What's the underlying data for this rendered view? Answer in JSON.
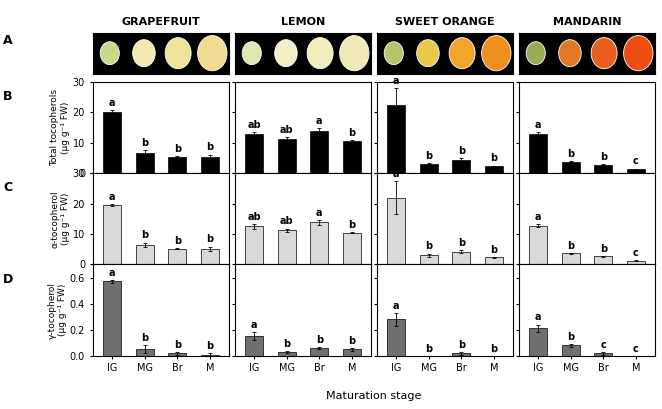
{
  "panel_A": "A",
  "xlabel": "Maturation stage",
  "chart_data": [
    {
      "type": "bar",
      "panel": "B",
      "title": "GRAPEFRUIT",
      "ylabel": "Total tocopherols\n(µg g⁻¹ FW)",
      "categories": [
        "IG",
        "MG",
        "Br",
        "M"
      ],
      "values": [
        20.2,
        6.7,
        5.3,
        5.3
      ],
      "errors": [
        0.5,
        0.8,
        0.3,
        0.8
      ],
      "letters": [
        "a",
        "b",
        "b",
        "b"
      ],
      "color": "#000000",
      "ylim": [
        0,
        30
      ],
      "yticks": [
        0,
        10,
        20,
        30
      ],
      "tick_labels": "y"
    },
    {
      "type": "bar",
      "title": "LEMON",
      "categories": [
        "IG",
        "MG",
        "Br",
        "M"
      ],
      "values": [
        12.7,
        11.3,
        14.0,
        10.6
      ],
      "errors": [
        0.8,
        0.6,
        0.8,
        0.3
      ],
      "letters": [
        "ab",
        "ab",
        "a",
        "b"
      ],
      "color": "#000000",
      "ylim": [
        0,
        30
      ],
      "yticks": [
        0,
        10,
        20,
        30
      ],
      "tick_labels": false
    },
    {
      "type": "bar",
      "title": "SWEET ORANGE",
      "categories": [
        "IG",
        "MG",
        "Br",
        "M"
      ],
      "values": [
        22.3,
        3.1,
        4.3,
        2.3
      ],
      "errors": [
        5.5,
        0.3,
        0.6,
        0.2
      ],
      "letters": [
        "a",
        "b",
        "b",
        "b"
      ],
      "color": "#000000",
      "ylim": [
        0,
        30
      ],
      "yticks": [
        0,
        10,
        20,
        30
      ],
      "tick_labels": false
    },
    {
      "type": "bar",
      "title": "MANDARIN",
      "categories": [
        "IG",
        "MG",
        "Br",
        "M"
      ],
      "values": [
        13.0,
        3.8,
        2.8,
        1.3
      ],
      "errors": [
        0.5,
        0.2,
        0.2,
        0.2
      ],
      "letters": [
        "a",
        "b",
        "b",
        "c"
      ],
      "color": "#000000",
      "ylim": [
        0,
        30
      ],
      "yticks": [
        0,
        10,
        20,
        30
      ],
      "tick_labels": false
    },
    {
      "type": "bar",
      "panel": "C",
      "ylabel": "α-tocopherol\n(µg g⁻¹ FW)",
      "categories": [
        "IG",
        "MG",
        "Br",
        "M"
      ],
      "values": [
        19.6,
        6.5,
        5.2,
        5.2
      ],
      "errors": [
        0.4,
        0.7,
        0.2,
        0.7
      ],
      "letters": [
        "a",
        "b",
        "b",
        "b"
      ],
      "color": "#d9d9d9",
      "ylim": [
        0,
        30
      ],
      "yticks": [
        0,
        10,
        20,
        30
      ],
      "tick_labels": "y"
    },
    {
      "type": "bar",
      "categories": [
        "IG",
        "MG",
        "Br",
        "M"
      ],
      "values": [
        12.5,
        11.2,
        13.9,
        10.5
      ],
      "errors": [
        0.8,
        0.6,
        0.8,
        0.3
      ],
      "letters": [
        "ab",
        "ab",
        "a",
        "b"
      ],
      "color": "#d9d9d9",
      "ylim": [
        0,
        30
      ],
      "yticks": [
        0,
        10,
        20,
        30
      ],
      "tick_labels": false
    },
    {
      "type": "bar",
      "categories": [
        "IG",
        "MG",
        "Br",
        "M"
      ],
      "values": [
        22.0,
        3.1,
        4.2,
        2.3
      ],
      "errors": [
        5.5,
        0.5,
        0.4,
        0.2
      ],
      "letters": [
        "a",
        "b",
        "b",
        "b"
      ],
      "color": "#d9d9d9",
      "ylim": [
        0,
        30
      ],
      "yticks": [
        0,
        10,
        20,
        30
      ],
      "tick_labels": false
    },
    {
      "type": "bar",
      "categories": [
        "IG",
        "MG",
        "Br",
        "M"
      ],
      "values": [
        12.8,
        3.7,
        2.7,
        1.3
      ],
      "errors": [
        0.4,
        0.2,
        0.2,
        0.2
      ],
      "letters": [
        "a",
        "b",
        "b",
        "c"
      ],
      "color": "#d9d9d9",
      "ylim": [
        0,
        30
      ],
      "yticks": [
        0,
        10,
        20,
        30
      ],
      "tick_labels": false
    },
    {
      "type": "bar",
      "panel": "D",
      "ylabel": "γ-tocopherol\n(µg g⁻¹ FW)",
      "categories": [
        "IG",
        "MG",
        "Br",
        "M"
      ],
      "values": [
        0.57,
        0.05,
        0.02,
        0.01
      ],
      "errors": [
        0.01,
        0.03,
        0.01,
        0.01
      ],
      "letters": [
        "a",
        "b",
        "b",
        "b"
      ],
      "color": "#707070",
      "ylim": [
        0,
        0.7
      ],
      "yticks": [
        {
          "value": 0,
          "label": "0.0"
        },
        {
          "value": 0.2,
          "label": "0.2"
        },
        {
          "value": 0.4,
          "label": "0.4"
        },
        {
          "value": 0.6,
          "label": "0.6"
        }
      ]
    },
    {
      "type": "bar",
      "categories": [
        "IG",
        "MG",
        "Br",
        "M"
      ],
      "values": [
        0.15,
        0.03,
        0.06,
        0.05
      ],
      "errors": [
        0.03,
        0.01,
        0.01,
        0.01
      ],
      "letters": [
        "a",
        "b",
        "b",
        "b"
      ],
      "color": "#707070",
      "ylim": [
        0,
        0.7
      ],
      "yticks": [
        {
          "value": 0,
          "label": "0.0"
        },
        {
          "value": 0.2,
          "label": "0.2"
        },
        {
          "value": 0.4,
          "label": "0.4"
        },
        {
          "value": 0.6,
          "label": "0.6"
        }
      ],
      "tick_labels": "x"
    },
    {
      "type": "bar",
      "categories": [
        "IG",
        "MG",
        "Br",
        "M"
      ],
      "values": [
        0.28,
        0.0,
        0.02,
        0.0
      ],
      "errors": [
        0.05,
        0.0,
        0.01,
        0.0
      ],
      "letters": [
        "a",
        "b",
        "b",
        "b"
      ],
      "color": "#707070",
      "ylim": [
        0,
        0.7
      ],
      "yticks": [
        {
          "value": 0,
          "label": "0.0"
        },
        {
          "value": 0.2,
          "label": "0.2"
        },
        {
          "value": 0.4,
          "label": "0.4"
        },
        {
          "value": 0.6,
          "label": "0.6"
        }
      ],
      "tick_labels": "x"
    },
    {
      "type": "bar",
      "categories": [
        "IG",
        "MG",
        "Br",
        "M"
      ],
      "values": [
        0.21,
        0.08,
        0.02,
        0.0
      ],
      "errors": [
        0.03,
        0.01,
        0.01,
        0.0
      ],
      "letters": [
        "a",
        "b",
        "c",
        "c"
      ],
      "color": "#707070",
      "ylim": [
        0,
        0.7
      ],
      "yticks": [
        {
          "value": 0,
          "label": "0.0"
        },
        {
          "value": 0.2,
          "label": "0.2"
        },
        {
          "value": 0.4,
          "label": "0.4"
        },
        {
          "value": 0.6,
          "label": "0.6"
        }
      ],
      "tick_labels": "x"
    }
  ]
}
